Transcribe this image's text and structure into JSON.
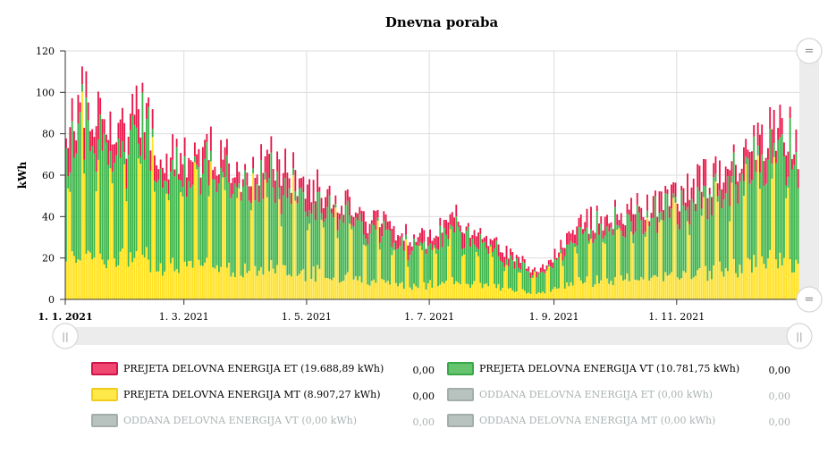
{
  "chart_data": {
    "type": "bar",
    "stacked": true,
    "title": "Dnevna poraba",
    "ylabel": "kWh",
    "xlabel": "",
    "ylim": [
      0,
      120
    ],
    "yticks": [
      0,
      20,
      40,
      60,
      80,
      100,
      120
    ],
    "x_tick_labels": [
      "1. 1. 2021",
      "1. 3. 2021",
      "1. 5. 2021",
      "1. 7. 2021",
      "1. 9. 2021",
      "1. 11. 2021"
    ],
    "grid": true,
    "navigator": true,
    "series_colors": {
      "MT": "#ffe11f",
      "VT": "#3cb54a",
      "ET": "#e8174a"
    },
    "approx_daily_totals_by_month": {
      "jan": [
        80,
        100,
        90,
        78
      ],
      "feb": [
        85,
        95,
        75,
        70
      ],
      "mar": [
        70,
        72,
        75,
        62
      ],
      "apr": [
        62,
        70,
        65,
        60
      ],
      "may": [
        55,
        52,
        48,
        40
      ],
      "jun": [
        40,
        36,
        32,
        30
      ],
      "jul": [
        35,
        40,
        34,
        28
      ],
      "aug": [
        25,
        20,
        15,
        18
      ],
      "sep": [
        30,
        38,
        40,
        42
      ],
      "oct": [
        44,
        46,
        48,
        52
      ],
      "nov": [
        55,
        60,
        64,
        68
      ],
      "dec": [
        75,
        82,
        88,
        70
      ]
    }
  },
  "legend": [
    {
      "name": "PREJETA DELOVNA ENERGIJA ET (19.688,89 kWh)",
      "value": "0,00",
      "color": "#f04870",
      "border": "#d0154a",
      "enabled": true
    },
    {
      "name": "PREJETA DELOVNA ENERGIJA VT (10.781,75 kWh)",
      "value": "0,00",
      "color": "#66c46e",
      "border": "#3aa847",
      "enabled": true
    },
    {
      "name": "PREJETA DELOVNA ENERGIJA MT (8.907,27 kWh)",
      "value": "0,00",
      "color": "#ffe84a",
      "border": "#f2cc1a",
      "enabled": true
    },
    {
      "name": "ODDANA DELOVNA ENERGIJA ET (0,00 kWh)",
      "value": "0,00",
      "color": "#b8c2bf",
      "border": "#a3aeab",
      "enabled": false
    },
    {
      "name": "ODDANA DELOVNA ENERGIJA VT (0,00 kWh)",
      "value": "0,00",
      "color": "#b8c2bf",
      "border": "#a3aeab",
      "enabled": false
    },
    {
      "name": "ODDANA DELOVNA ENERGIJA MT (0,00 kWh)",
      "value": "0,00",
      "color": "#b8c2bf",
      "border": "#a3aeab",
      "enabled": false
    }
  ],
  "controls": {
    "zoom_handle_glyph": "=",
    "nav_handle_glyph": "||"
  }
}
